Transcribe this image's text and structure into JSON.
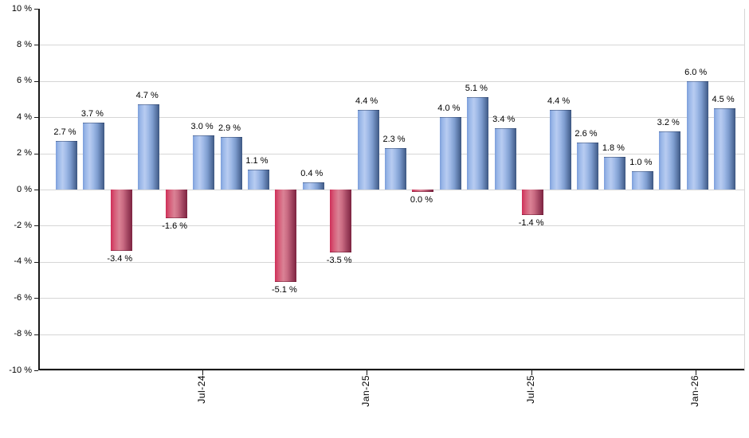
{
  "chart_data": {
    "type": "bar",
    "title": "",
    "xlabel": "",
    "ylabel": "",
    "ylim": [
      -10,
      10
    ],
    "grid": true,
    "legend": "none",
    "value_label_suffix": " %",
    "y_tick_labels": [
      "10 %",
      "8 %",
      "6 %",
      "4 %",
      "2 %",
      "0 %",
      "-2 %",
      "-4 %",
      "-6 %",
      "-8 %",
      "-10 %"
    ],
    "y_tick_values": [
      10,
      8,
      6,
      4,
      2,
      0,
      -2,
      -4,
      -6,
      -8,
      -10
    ],
    "x_tick_labels": [
      {
        "bar_index": 5,
        "label": "Jul-24"
      },
      {
        "bar_index": 11,
        "label": "Jan-25"
      },
      {
        "bar_index": 17,
        "label": "Jul-25"
      },
      {
        "bar_index": 23,
        "label": "Jan-26"
      }
    ],
    "values": [
      2.7,
      3.7,
      -3.4,
      4.7,
      -1.6,
      3.0,
      2.9,
      1.1,
      -5.1,
      0.4,
      -3.5,
      4.4,
      2.3,
      0.0,
      4.0,
      5.1,
      3.4,
      -1.4,
      4.4,
      2.6,
      1.8,
      1.0,
      3.2,
      6.0,
      4.5
    ],
    "bar_value_labels": [
      "2.7 %",
      "3.7 %",
      "-3.4 %",
      "4.7 %",
      "-1.6 %",
      "3.0 %",
      "2.9 %",
      "1.1 %",
      "-5.1 %",
      "0.4 %",
      "-3.5 %",
      "4.4 %",
      "2.3 %",
      "0.0 %",
      "4.0 %",
      "5.1 %",
      "3.4 %",
      "-1.4 %",
      "4.4 %",
      "2.6 %",
      "1.8 %",
      "1.0 %",
      "3.2 %",
      "6.0 %",
      "4.5 %"
    ],
    "bar_colors": [
      "blue",
      "blue",
      "red",
      "blue",
      "red",
      "blue",
      "blue",
      "blue",
      "red",
      "blue",
      "red",
      "blue",
      "blue",
      "red",
      "blue",
      "blue",
      "blue",
      "red",
      "blue",
      "blue",
      "blue",
      "blue",
      "blue",
      "blue",
      "blue"
    ],
    "colors": {
      "positive_bar": "#88a9e0",
      "positive_bar_dark_edge": "#3d5781",
      "negative_bar": "#cf2e58",
      "negative_bar_dark_edge": "#7d2340",
      "gridline": "#d6d6d6",
      "axis": "#1a1a1a",
      "label_text": "#000000",
      "background": "#ffffff"
    }
  }
}
